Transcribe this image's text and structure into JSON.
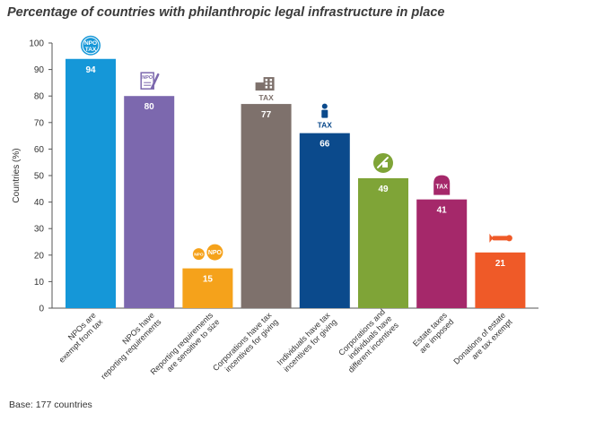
{
  "footnote": "Base: 177 countries",
  "colors": {
    "axis": "#555555",
    "label_inside": "#ffffff"
  },
  "chart_data": {
    "type": "bar",
    "title": "Percentage of countries with philanthropic legal infrastructure in place",
    "xlabel": "",
    "ylabel": "Countries (%)",
    "ylim": [
      0,
      100
    ],
    "yticks": [
      0,
      10,
      20,
      30,
      40,
      50,
      60,
      70,
      80,
      90,
      100
    ],
    "grid": false,
    "legend": "none",
    "categories": [
      [
        "NPOs are",
        "exempt from tax"
      ],
      [
        "NPOs have",
        "reporting requirements"
      ],
      [
        "Reporting requirements",
        "are sensitive to size"
      ],
      [
        "Corporations have tax",
        "incentives for giving"
      ],
      [
        "Individuals have tax",
        "incentives for giving"
      ],
      [
        "Corporations and",
        "individuals have",
        "different incentives"
      ],
      [
        "Estate taxes",
        "are imposed"
      ],
      [
        "Donations of estate",
        "are tax exempt"
      ]
    ],
    "values": [
      94,
      80,
      15,
      77,
      66,
      49,
      41,
      21
    ],
    "bar_colors": [
      "#1597d8",
      "#7c68ae",
      "#f5a21b",
      "#7e716c",
      "#0b4a8c",
      "#7fa437",
      "#a5286a",
      "#ef5a28"
    ],
    "icons": [
      {
        "name": "npo-tax-badge-icon",
        "text": [
          "NPO",
          "TAX"
        ]
      },
      {
        "name": "document-pen-icon",
        "text": [
          "NPO"
        ]
      },
      {
        "name": "npo-size-badges-icon",
        "text": [
          "NPO",
          "NPO"
        ]
      },
      {
        "name": "building-tax-icon",
        "text": [
          "TAX"
        ]
      },
      {
        "name": "person-tax-icon",
        "text": [
          "TAX"
        ]
      },
      {
        "name": "handshake-icon",
        "text": []
      },
      {
        "name": "tombstone-tax-icon",
        "text": [
          "TAX"
        ]
      },
      {
        "name": "certificate-scroll-icon",
        "text": []
      }
    ]
  }
}
